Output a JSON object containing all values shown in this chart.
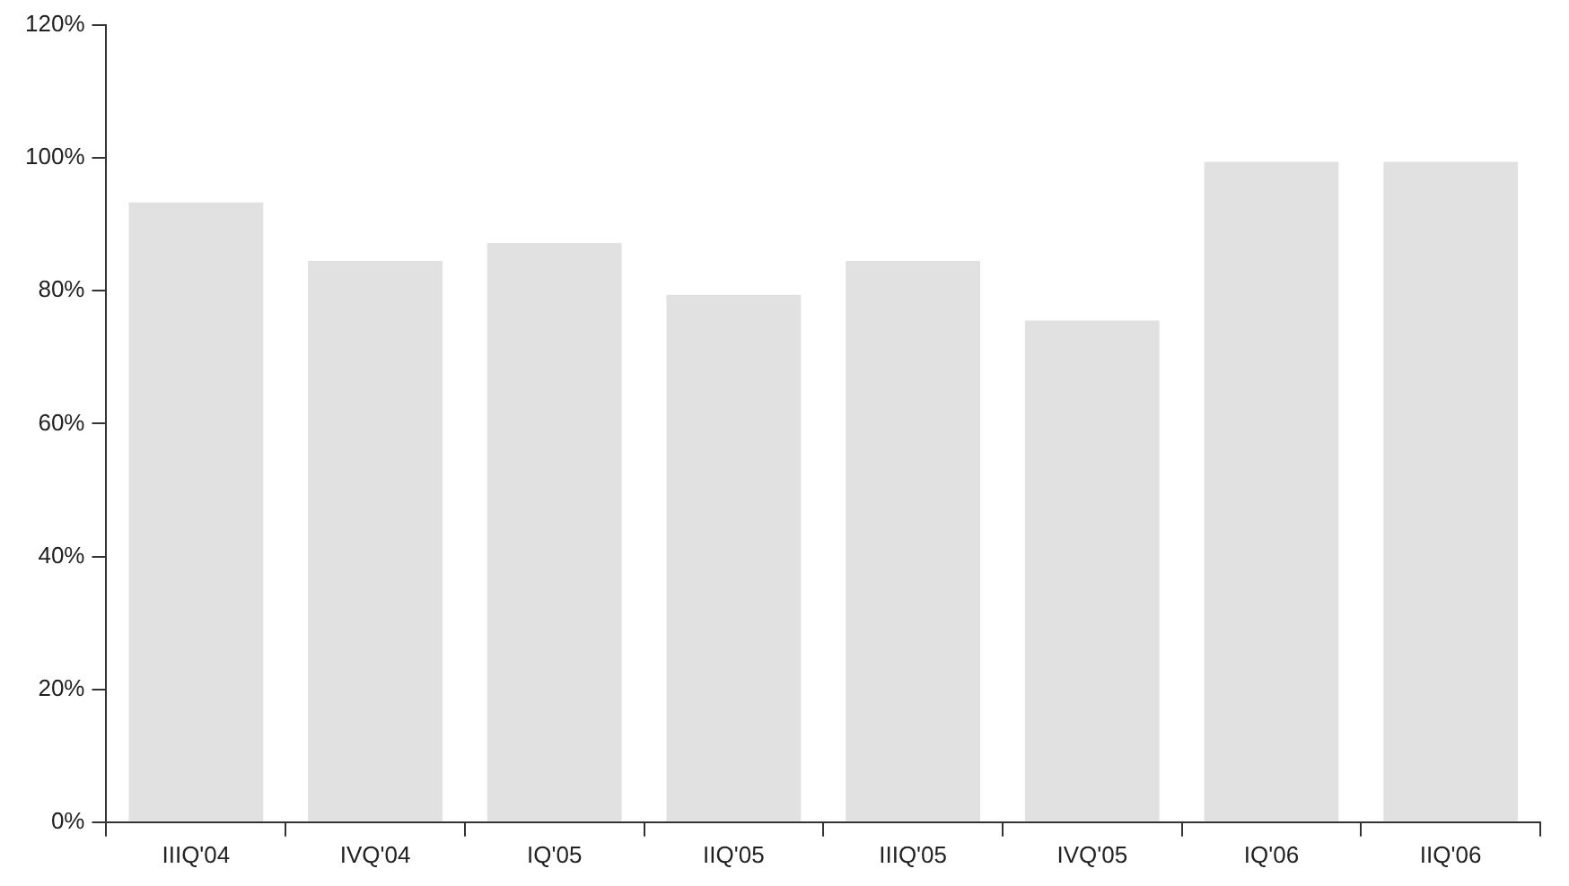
{
  "chart_data": {
    "type": "bar",
    "categories": [
      "IIIQ'04",
      "IVQ'04",
      "IQ'05",
      "IIQ'05",
      "IIIQ'05",
      "IVQ'05",
      "IQ'06",
      "IIQ'06"
    ],
    "values": [
      93.3,
      84.5,
      87.2,
      79.4,
      84.5,
      75.5,
      99.4,
      99.4
    ],
    "color": "#e1e1e1",
    "ylim": [
      0,
      120
    ],
    "yticks": [
      {
        "value": 0,
        "label": "0%"
      },
      {
        "value": 20,
        "label": "20%"
      },
      {
        "value": 40,
        "label": "40%"
      },
      {
        "value": 60,
        "label": "60%"
      },
      {
        "value": 80,
        "label": "80%"
      },
      {
        "value": 100,
        "label": "100%"
      },
      {
        "value": 120,
        "label": "120%"
      }
    ],
    "grid": false,
    "legend": false
  }
}
